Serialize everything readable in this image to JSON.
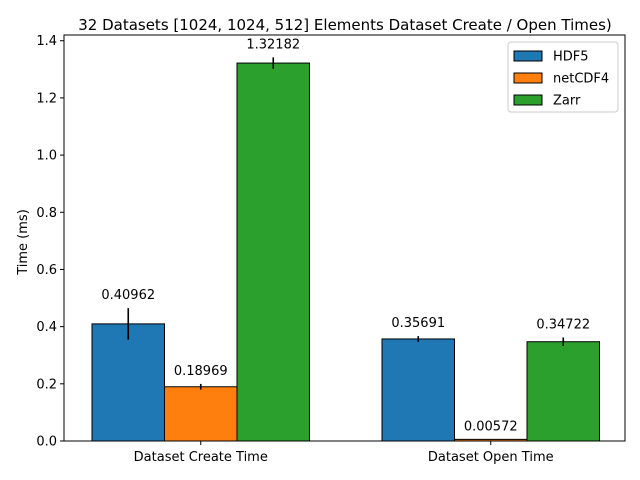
{
  "chart_data": {
    "type": "bar",
    "title": "32 Datasets [1024, 1024, 512] Elements Dataset Create / Open Times)",
    "xlabel": "",
    "ylabel": "Time (ms)",
    "categories": [
      "Dataset Create Time",
      "Dataset Open Time"
    ],
    "series": [
      {
        "name": "HDF5",
        "color": "#1f77b4",
        "values": [
          0.40962,
          0.35691
        ],
        "errors": [
          0.055,
          0.01
        ],
        "labels": [
          "0.40962",
          "0.35691"
        ]
      },
      {
        "name": "netCDF4",
        "color": "#ff7f0e",
        "values": [
          0.18969,
          0.00572
        ],
        "errors": [
          0.01,
          0.0
        ],
        "labels": [
          "0.18969",
          "0.00572"
        ]
      },
      {
        "name": "Zarr",
        "color": "#2ca02c",
        "values": [
          1.32182,
          0.34722
        ],
        "errors": [
          0.02,
          0.015
        ],
        "labels": [
          "1.32182",
          "0.34722"
        ]
      }
    ],
    "ylim": [
      0,
      1.42
    ],
    "yticks": [
      0.0,
      0.2,
      0.4,
      0.6,
      0.8,
      1.0,
      1.2,
      1.4
    ],
    "ytick_labels": [
      "0.0",
      "0.2",
      "0.4",
      "0.6",
      "0.8",
      "1.0",
      "1.2",
      "1.4"
    ],
    "grid": false,
    "legend_position": "top-right",
    "error_bars": true
  }
}
